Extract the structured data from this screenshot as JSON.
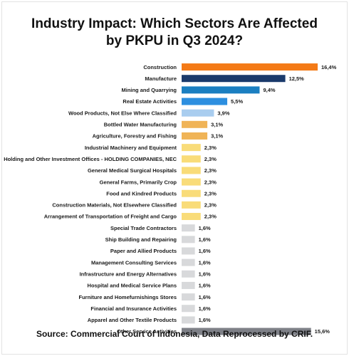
{
  "title_line1": "Industry Impact: Which Sectors Are Affected",
  "title_line2": "by PKPU in Q3 2024?",
  "source": "Source: Commercial Court of Indonesia, Data Reprocessed by CRIF.",
  "colors": {
    "orange": "#f47a16",
    "navy": "#1a3a6b",
    "blue_mid": "#1b7fc1",
    "blue": "#2d8fe0",
    "light_blue": "#a9cdef",
    "gold": "#f0b457",
    "yellow": "#f9dc79",
    "light_gray": "#d8d9db",
    "dark_gray": "#7e8087"
  },
  "chart_data": {
    "type": "bar",
    "orientation": "horizontal",
    "title": "Industry Impact: Which Sectors Are Affected by PKPU in Q3 2024?",
    "categories": [
      "Construction",
      "Manufacture",
      "Mining and Quarrying",
      "Real Estate Activities",
      "Wood Products, Not Else Where Classified",
      "Bottled Water Manufacturing",
      "Agriculture, Forestry and Fishing",
      "Industrial Machinery and Equipment",
      "Holding and Other Investment Offices - HOLDING COMPANIES, NEC",
      "General Medical Surgical Hospitals",
      "General Farms, Primarily Crop",
      "Food and Kindred Products",
      "Construction Materials, Not Elsewhere Classified",
      "Arrangement of Transportation of Freight and Cargo",
      "Special Trade Contractors",
      "Ship Building and Repairing",
      "Paper and Allied Products",
      "Management Consulting Services",
      "Infrastructure and Energy Alternatives",
      "Hospital and Medical Service Plans",
      "Furniture and Homefurnishings Stores",
      "Financial and Insurance Activities",
      "Apparel and Other Textile Products",
      "Other Service Activities"
    ],
    "values": [
      16.4,
      12.5,
      9.4,
      5.5,
      3.9,
      3.1,
      3.1,
      2.3,
      2.3,
      2.3,
      2.3,
      2.3,
      2.3,
      2.3,
      1.6,
      1.6,
      1.6,
      1.6,
      1.6,
      1.6,
      1.6,
      1.6,
      1.6,
      15.6
    ],
    "value_labels": [
      "16,4%",
      "12,5%",
      "9,4%",
      "5,5%",
      "3,9%",
      "3,1%",
      "3,1%",
      "2,3%",
      "2,3%",
      "2,3%",
      "2,3%",
      "2,3%",
      "2,3%",
      "2,3%",
      "1,6%",
      "1,6%",
      "1,6%",
      "1,6%",
      "1,6%",
      "1,6%",
      "1,6%",
      "1,6%",
      "1,6%",
      "15,6%"
    ],
    "bar_colors": [
      "orange",
      "navy",
      "blue_mid",
      "blue",
      "light_blue",
      "gold",
      "gold",
      "yellow",
      "yellow",
      "yellow",
      "yellow",
      "yellow",
      "yellow",
      "yellow",
      "light_gray",
      "light_gray",
      "light_gray",
      "light_gray",
      "light_gray",
      "light_gray",
      "light_gray",
      "light_gray",
      "light_gray",
      "dark_gray"
    ],
    "xlim": [
      0,
      16.4
    ],
    "grid": false,
    "legend": "none",
    "xlabel": "",
    "ylabel": ""
  }
}
